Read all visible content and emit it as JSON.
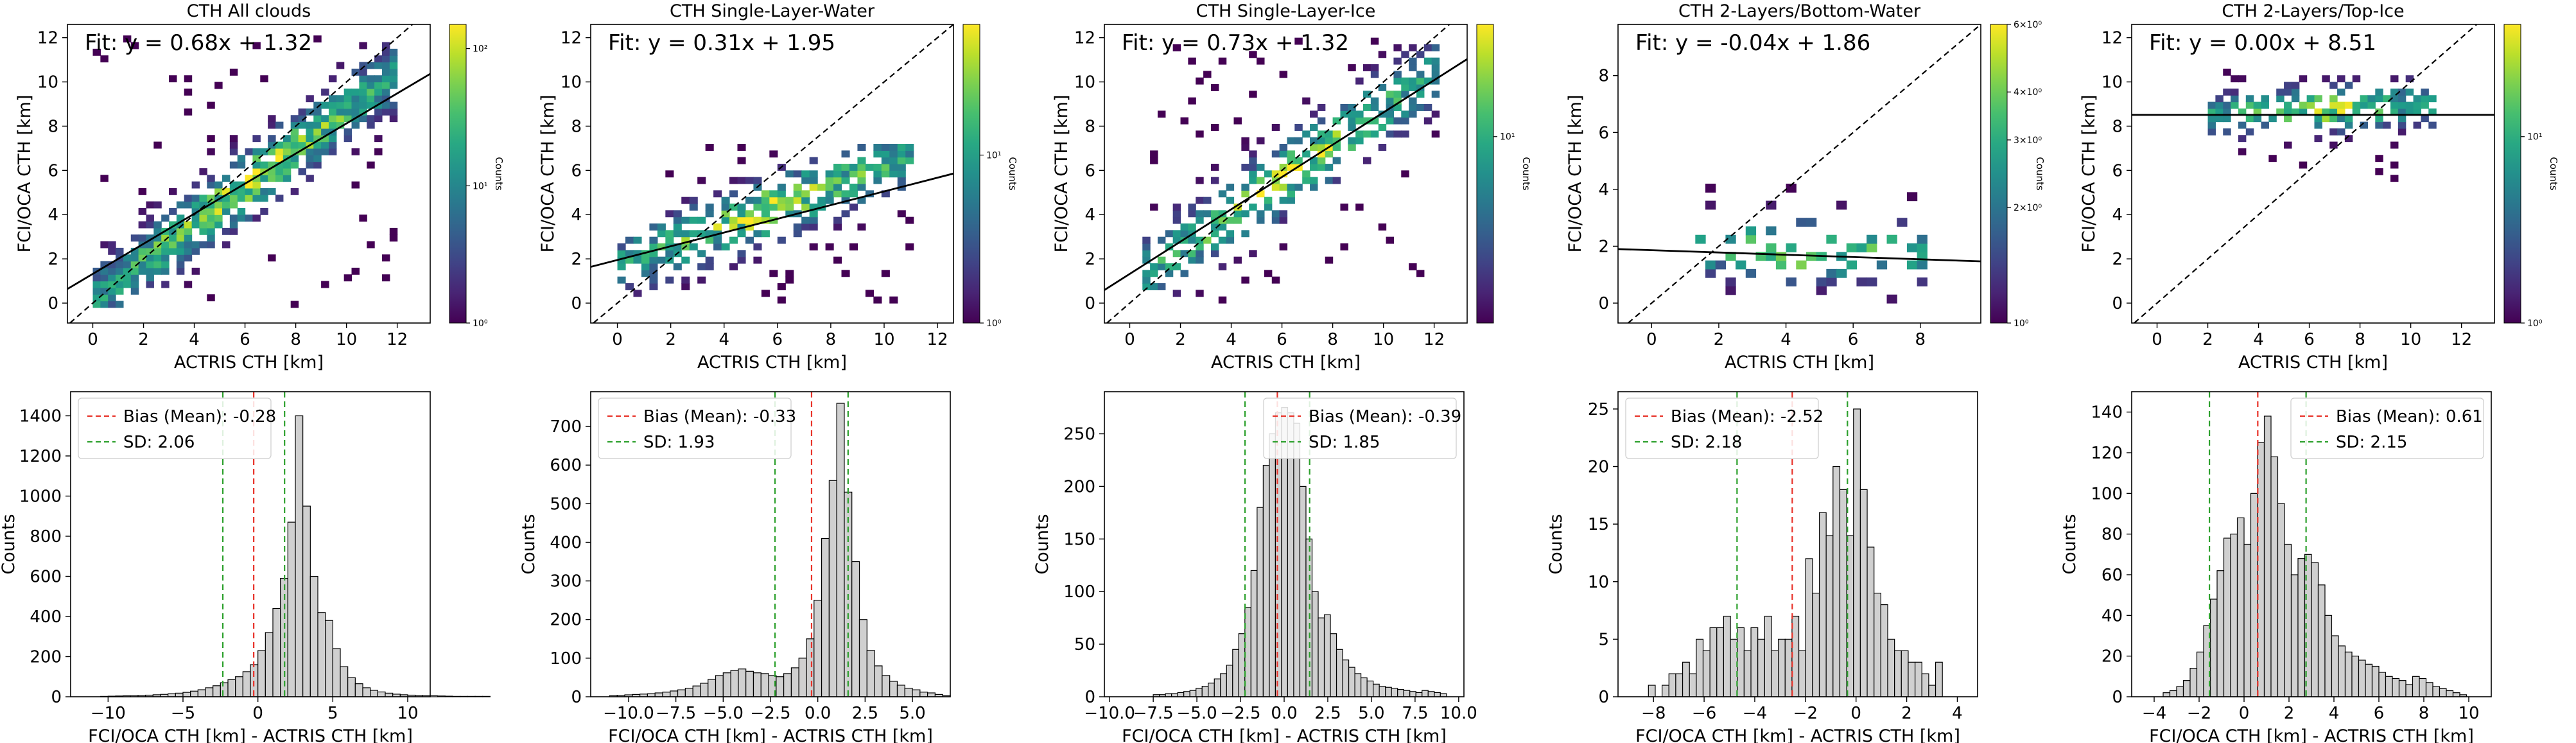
{
  "chart_data": [
    {
      "type": "heatmap",
      "title": "CTH All clouds",
      "xlabel": "ACTRIS CTH [km]",
      "ylabel": "FCI/OCA CTH [km]",
      "xlim": [
        -1,
        13.3
      ],
      "ylim": [
        -0.9,
        12.6
      ],
      "xticks": [
        0,
        2,
        4,
        6,
        8,
        10,
        12
      ],
      "yticks": [
        0,
        2,
        4,
        6,
        8,
        10,
        12
      ],
      "fit_text": "Fit: y = 0.68x + 1.32",
      "fit": {
        "slope": 0.68,
        "intercept": 1.32
      },
      "identity_line": true,
      "cloud": {
        "x_range": [
          0,
          12
        ],
        "y_range": [
          -0.2,
          12
        ],
        "slope": 0.85,
        "intercept": 0.2,
        "spread": 1.4,
        "density": 0.95
      },
      "colorbar": {
        "label": "Counts",
        "scale": "log",
        "tick_labels": [
          "10^0",
          "10^1",
          "10^2"
        ],
        "tick_values": [
          1,
          10,
          100
        ],
        "min": 1,
        "max": 150
      }
    },
    {
      "type": "heatmap",
      "title": "CTH Single-Layer-Water",
      "xlabel": "ACTRIS CTH [km]",
      "ylabel": "FCI/OCA CTH [km]",
      "xlim": [
        -1,
        12.6
      ],
      "ylim": [
        -0.9,
        12.6
      ],
      "xticks": [
        0,
        2,
        4,
        6,
        8,
        10,
        12
      ],
      "yticks": [
        0,
        2,
        4,
        6,
        8,
        10,
        12
      ],
      "fit_text": "Fit: y = 0.31x + 1.95",
      "fit": {
        "slope": 0.31,
        "intercept": 1.95
      },
      "identity_line": true,
      "cloud": {
        "x_range": [
          0,
          11
        ],
        "y_range": [
          0,
          7
        ],
        "slope": 0.45,
        "intercept": 1.6,
        "spread": 1.3,
        "density": 0.65
      },
      "colorbar": {
        "label": "Counts",
        "scale": "log",
        "tick_labels": [
          "10^0",
          "10^1"
        ],
        "tick_values": [
          1,
          10
        ],
        "min": 1,
        "max": 60
      }
    },
    {
      "type": "heatmap",
      "title": "CTH Single-Layer-Ice",
      "xlabel": "ACTRIS CTH [km]",
      "ylabel": "FCI/OCA CTH [km]",
      "xlim": [
        -1,
        13.3
      ],
      "ylim": [
        -0.9,
        12.6
      ],
      "xticks": [
        0,
        2,
        4,
        6,
        8,
        10,
        12
      ],
      "yticks": [
        0,
        2,
        4,
        6,
        8,
        10,
        12
      ],
      "fit_text": "Fit: y = 0.73x + 1.32",
      "fit": {
        "slope": 0.73,
        "intercept": 1.32
      },
      "identity_line": true,
      "cloud": {
        "x_range": [
          0.5,
          12
        ],
        "y_range": [
          0,
          12
        ],
        "slope": 0.8,
        "intercept": 0.8,
        "spread": 1.5,
        "density": 0.6
      },
      "colorbar": {
        "label": "Counts",
        "scale": "log",
        "tick_labels": [
          "10^1"
        ],
        "tick_values": [
          10
        ],
        "min": 1,
        "max": 40
      }
    },
    {
      "type": "heatmap",
      "title": "CTH 2-Layers/Bottom-Water",
      "xlabel": "ACTRIS CTH [km]",
      "ylabel": "FCI/OCA CTH [km]",
      "xlim": [
        -1,
        9.8
      ],
      "ylim": [
        -0.7,
        9.8
      ],
      "xticks": [
        0,
        2,
        4,
        6,
        8
      ],
      "yticks": [
        0,
        2,
        4,
        6,
        8
      ],
      "fit_text": "Fit: y = -0.04x + 1.86",
      "fit": {
        "slope": -0.04,
        "intercept": 1.86
      },
      "identity_line": true,
      "cloud": {
        "x_range": [
          1,
          8
        ],
        "y_range": [
          0,
          4
        ],
        "slope": -0.04,
        "intercept": 1.9,
        "spread": 1.0,
        "density": 0.25
      },
      "colorbar": {
        "label": "Counts",
        "scale": "log",
        "tick_labels": [
          "10^0",
          "2×10^0",
          "3×10^0",
          "4×10^0",
          "6×10^0"
        ],
        "tick_values": [
          1,
          2,
          3,
          4,
          6
        ],
        "min": 1,
        "max": 6
      }
    },
    {
      "type": "heatmap",
      "title": "CTH 2-Layers/Top-Ice",
      "xlabel": "ACTRIS CTH [km]",
      "ylabel": "FCI/OCA CTH [km]",
      "xlim": [
        -1,
        13.3
      ],
      "ylim": [
        -0.9,
        12.6
      ],
      "xticks": [
        0,
        2,
        4,
        6,
        8,
        10,
        12
      ],
      "yticks": [
        0,
        2,
        4,
        6,
        8,
        10,
        12
      ],
      "fit_text": "Fit: y = 0.00x + 8.51",
      "fit": {
        "slope": 0.0,
        "intercept": 8.51
      },
      "identity_line": true,
      "cloud": {
        "x_range": [
          2,
          11
        ],
        "y_range": [
          5.5,
          10.5
        ],
        "slope": 0.05,
        "intercept": 8.3,
        "spread": 0.9,
        "density": 0.6
      },
      "colorbar": {
        "label": "Counts",
        "scale": "log",
        "tick_labels": [
          "10^0",
          "10^1"
        ],
        "tick_values": [
          1,
          10
        ],
        "min": 1,
        "max": 40
      }
    },
    {
      "type": "bar",
      "subtype": "histogram",
      "xlabel": "FCI/OCA CTH [km] - ACTRIS CTH [km]",
      "ylabel": "Counts",
      "xlim": [
        -12.5,
        11.5
      ],
      "ylim": [
        0,
        1520
      ],
      "xticks": [
        -10,
        -5,
        0,
        5,
        10
      ],
      "yticks": [
        0,
        200,
        400,
        600,
        800,
        1000,
        1200,
        1400
      ],
      "bias": -0.28,
      "sd": 2.06,
      "legend": [
        "Bias (Mean): -0.28",
        "SD: 2.06"
      ],
      "legend_loc": "upper-left",
      "bin_start": -10.5,
      "bin_width": 0.5,
      "counts": [
        2,
        3,
        4,
        5,
        5,
        7,
        8,
        10,
        12,
        15,
        18,
        22,
        28,
        35,
        45,
        55,
        70,
        85,
        100,
        125,
        160,
        230,
        320,
        440,
        590,
        870,
        1400,
        950,
        600,
        420,
        380,
        240,
        150,
        95,
        65,
        45,
        32,
        24,
        18,
        13,
        10,
        8,
        7,
        6,
        5,
        4,
        3,
        2,
        2,
        2,
        2,
        2
      ]
    },
    {
      "type": "bar",
      "subtype": "histogram",
      "xlabel": "FCI/OCA CTH [km] - ACTRIS CTH [km]",
      "ylabel": "Counts",
      "xlim": [
        -12,
        7
      ],
      "ylim": [
        0,
        790
      ],
      "xticks": [
        -10.0,
        -7.5,
        -5.0,
        -2.5,
        0.0,
        2.5,
        5.0
      ],
      "ytick_labels": [
        "0",
        "100",
        "200",
        "300",
        "400",
        "500",
        "600",
        "700"
      ],
      "bias": -0.33,
      "sd": 1.93,
      "legend": [
        "Bias (Mean): -0.33",
        "SD: 1.93"
      ],
      "legend_loc": "upper-left",
      "bin_start": -11,
      "bin_width": 0.4,
      "counts": [
        3,
        4,
        5,
        6,
        7,
        8,
        10,
        12,
        15,
        18,
        22,
        28,
        35,
        45,
        55,
        62,
        68,
        72,
        66,
        62,
        60,
        55,
        52,
        60,
        75,
        100,
        150,
        250,
        410,
        560,
        760,
        530,
        350,
        200,
        120,
        80,
        55,
        40,
        30,
        22,
        18,
        12,
        10,
        6,
        4
      ]
    },
    {
      "type": "bar",
      "subtype": "histogram",
      "xlabel": "FCI/OCA CTH [km] - ACTRIS CTH [km]",
      "ylabel": "Counts",
      "xlim": [
        -10.3,
        10.3
      ],
      "ylim": [
        0,
        290
      ],
      "xticks": [
        -10.0,
        -7.5,
        -5.0,
        -2.5,
        0.0,
        2.5,
        5.0,
        7.5,
        10.0
      ],
      "ytick_labels": [
        "0",
        "50",
        "100",
        "150",
        "200",
        "250"
      ],
      "bias": -0.39,
      "sd": 1.85,
      "legend": [
        "Bias (Mean): -0.39",
        "SD: 1.85"
      ],
      "legend_loc": "upper-right",
      "bin_start": -7.5,
      "bin_width": 0.35,
      "counts": [
        2,
        2,
        3,
        3,
        4,
        5,
        6,
        8,
        10,
        13,
        17,
        22,
        30,
        45,
        60,
        85,
        120,
        180,
        220,
        250,
        270,
        275,
        270,
        260,
        200,
        150,
        100,
        75,
        78,
        60,
        45,
        35,
        28,
        22,
        18,
        15,
        12,
        10,
        9,
        8,
        7,
        6,
        5,
        4,
        6,
        5,
        4,
        3
      ]
    },
    {
      "type": "bar",
      "subtype": "histogram",
      "xlabel": "FCI/OCA CTH [km] - ACTRIS CTH [km]",
      "ylabel": "Counts",
      "xlim": [
        -9.4,
        4.8
      ],
      "ylim": [
        0,
        26.5
      ],
      "xticks": [
        -8,
        -6,
        -4,
        -2,
        0,
        2,
        4
      ],
      "ytick_labels": [
        "0",
        "5",
        "10",
        "15",
        "20",
        "25"
      ],
      "bias": -2.52,
      "sd": 2.18,
      "legend": [
        "Bias (Mean): -2.52",
        "SD: 2.18"
      ],
      "legend_loc": "upper-left",
      "bin_start": -8.2,
      "bin_width": 0.27,
      "counts": [
        1,
        0,
        1,
        2,
        2,
        3,
        2,
        5,
        4,
        6,
        6,
        7,
        5,
        6,
        4,
        6,
        5,
        7,
        4,
        5,
        5,
        7,
        4,
        12,
        9,
        16,
        14,
        20,
        18,
        14,
        25,
        18,
        13,
        9,
        8,
        5,
        4,
        4,
        3,
        3,
        2,
        1,
        3,
        0,
        0
      ]
    },
    {
      "type": "bar",
      "subtype": "histogram",
      "xlabel": "FCI/OCA CTH [km] - ACTRIS CTH [km]",
      "ylabel": "Counts",
      "xlim": [
        -5,
        11
      ],
      "ylim": [
        0,
        150
      ],
      "xticks": [
        -4,
        -2,
        0,
        2,
        4,
        6,
        8,
        10
      ],
      "ytick_labels": [
        "0",
        "20",
        "40",
        "60",
        "80",
        "100",
        "120",
        "140"
      ],
      "bias": 0.61,
      "sd": 2.15,
      "legend": [
        "Bias (Mean): 0.61",
        "SD: 2.15"
      ],
      "legend_loc": "upper-right",
      "bin_start": -3.6,
      "bin_width": 0.3,
      "counts": [
        2,
        3,
        5,
        8,
        14,
        22,
        35,
        48,
        62,
        78,
        80,
        88,
        75,
        100,
        125,
        138,
        118,
        95,
        75,
        60,
        68,
        70,
        66,
        55,
        40,
        30,
        25,
        22,
        20,
        18,
        16,
        15,
        12,
        10,
        9,
        8,
        6,
        10,
        9,
        7,
        5,
        4,
        3,
        2,
        1
      ]
    }
  ]
}
